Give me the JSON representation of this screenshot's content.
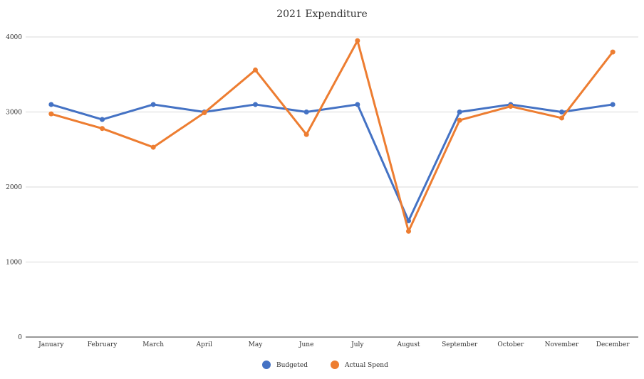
{
  "chart_data": {
    "type": "line",
    "title": "2021 Expenditure",
    "xlabel": "",
    "ylabel": "",
    "categories": [
      "January",
      "February",
      "March",
      "April",
      "May",
      "June",
      "July",
      "August",
      "September",
      "October",
      "November",
      "December"
    ],
    "ylim": [
      0,
      4000
    ],
    "yticks": [
      "0",
      "1000",
      "2000",
      "3000",
      "4000"
    ],
    "grid": true,
    "legend_position": "bottom",
    "series": [
      {
        "name": "Budgeted",
        "color": "#4472c4",
        "values": [
          3100,
          2900,
          3100,
          3000,
          3100,
          3000,
          3100,
          1550,
          3000,
          3100,
          3000,
          3100
        ]
      },
      {
        "name": "Actual Spend",
        "color": "#ed7d31",
        "values": [
          2975,
          2780,
          2530,
          2990,
          3560,
          2700,
          3950,
          1410,
          2890,
          3075,
          2920,
          3800
        ]
      }
    ]
  }
}
